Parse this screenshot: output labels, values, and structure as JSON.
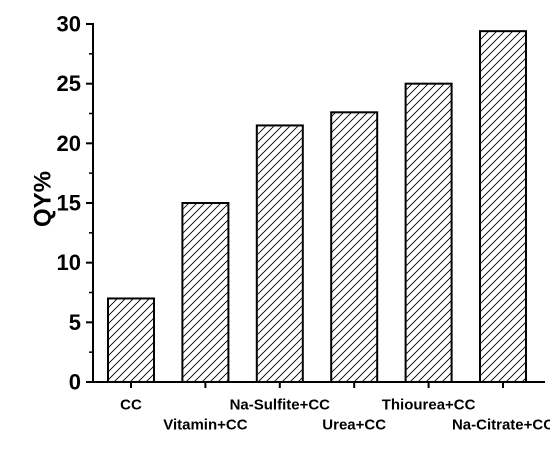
{
  "chart_data": {
    "type": "bar",
    "categories": [
      "CC",
      "Vitamin+CC",
      "Na-Sulfite+CC",
      "Urea+CC",
      "Thiourea+CC",
      "Na-Citrate+CC"
    ],
    "values": [
      7.0,
      15.0,
      21.5,
      22.6,
      25.0,
      29.4
    ],
    "title": "",
    "xlabel": "",
    "ylabel": "QY%",
    "ylim": [
      0,
      30
    ],
    "yticks": [
      0,
      5,
      10,
      15,
      20,
      25,
      30
    ],
    "grid": false,
    "bar_fill": "hatched",
    "bar_color": "#ffffff",
    "edge_color": "#000000"
  }
}
